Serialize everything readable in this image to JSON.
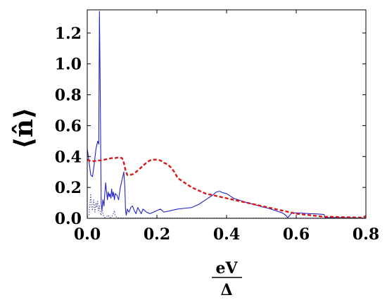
{
  "chart_data": {
    "type": "line",
    "title": "",
    "xlabel_num": "eV",
    "xlabel_den": "Δ",
    "ylabel": "⟨n̂⟩",
    "xlim": [
      0,
      0.8
    ],
    "ylim": [
      0,
      1.35
    ],
    "xticks": [
      "0.0",
      "0.2",
      "0.4",
      "0.6",
      "0.8"
    ],
    "yticks": [
      "0.0",
      "0.2",
      "0.4",
      "0.6",
      "0.8",
      "1.0",
      "1.2"
    ],
    "xtick_values": [
      0,
      0.2,
      0.4,
      0.6,
      0.8
    ],
    "ytick_values": [
      0,
      0.2,
      0.4,
      0.6,
      0.8,
      1.0,
      1.2
    ],
    "grid": false,
    "series": [
      {
        "style": "solid",
        "color": "#2323c8",
        "x": [
          0,
          0.005,
          0.01,
          0.015,
          0.02,
          0.025,
          0.03,
          0.033,
          0.035,
          0.037,
          0.04,
          0.042,
          0.045,
          0.048,
          0.05,
          0.053,
          0.055,
          0.058,
          0.06,
          0.063,
          0.065,
          0.068,
          0.07,
          0.073,
          0.075,
          0.078,
          0.08,
          0.085,
          0.09,
          0.095,
          0.1,
          0.105,
          0.108,
          0.11,
          0.112,
          0.115,
          0.12,
          0.125,
          0.13,
          0.135,
          0.14,
          0.145,
          0.15,
          0.155,
          0.16,
          0.17,
          0.18,
          0.19,
          0.2,
          0.21,
          0.22,
          0.24,
          0.26,
          0.28,
          0.3,
          0.32,
          0.34,
          0.36,
          0.37,
          0.38,
          0.39,
          0.4,
          0.41,
          0.42,
          0.44,
          0.46,
          0.48,
          0.5,
          0.52,
          0.54,
          0.56,
          0.57,
          0.575,
          0.58,
          0.585,
          0.59,
          0.6,
          0.62,
          0.64,
          0.66,
          0.68,
          0.682,
          0.7,
          0.72,
          0.74,
          0.76,
          0.78,
          0.8
        ],
        "y": [
          0.45,
          0.37,
          0.28,
          0.27,
          0.35,
          0.45,
          0.5,
          0.48,
          1.34,
          0.9,
          0.1,
          0.05,
          0.12,
          0.08,
          0.15,
          0.23,
          0.18,
          0.12,
          0.17,
          0.14,
          0.16,
          0.13,
          0.19,
          0.14,
          0.17,
          0.12,
          0.16,
          0.15,
          0.12,
          0.2,
          0.25,
          0.3,
          0.2,
          0.05,
          0.02,
          0.06,
          0.04,
          0.07,
          0.08,
          0.05,
          0.03,
          0.07,
          0.05,
          0.03,
          0.06,
          0.04,
          0.03,
          0.04,
          0.05,
          0.06,
          0.04,
          0.05,
          0.06,
          0.065,
          0.07,
          0.09,
          0.12,
          0.15,
          0.17,
          0.175,
          0.165,
          0.16,
          0.145,
          0.13,
          0.115,
          0.1,
          0.09,
          0.075,
          0.065,
          0.05,
          0.035,
          0.02,
          0.005,
          0.015,
          0.03,
          0.035,
          0.035,
          0.033,
          0.03,
          0.028,
          0.025,
          0.005,
          0.005,
          0.005,
          0.004,
          0.003,
          0.002,
          0.002
        ]
      },
      {
        "style": "dashed",
        "color": "#d81818",
        "x": [
          0,
          0.01,
          0.02,
          0.03,
          0.04,
          0.05,
          0.06,
          0.07,
          0.08,
          0.09,
          0.1,
          0.105,
          0.11,
          0.115,
          0.12,
          0.13,
          0.14,
          0.15,
          0.16,
          0.17,
          0.18,
          0.19,
          0.2,
          0.21,
          0.22,
          0.23,
          0.24,
          0.25,
          0.26,
          0.28,
          0.3,
          0.32,
          0.34,
          0.36,
          0.38,
          0.4,
          0.42,
          0.44,
          0.46,
          0.48,
          0.5,
          0.52,
          0.54,
          0.56,
          0.58,
          0.6,
          0.62,
          0.64,
          0.66,
          0.68,
          0.7,
          0.72,
          0.74,
          0.76,
          0.78,
          0.79,
          0.8
        ],
        "y": [
          0.38,
          0.37,
          0.37,
          0.375,
          0.375,
          0.38,
          0.385,
          0.39,
          0.39,
          0.395,
          0.39,
          0.36,
          0.31,
          0.28,
          0.28,
          0.285,
          0.3,
          0.32,
          0.34,
          0.36,
          0.375,
          0.38,
          0.38,
          0.375,
          0.36,
          0.35,
          0.33,
          0.3,
          0.26,
          0.23,
          0.2,
          0.18,
          0.16,
          0.15,
          0.14,
          0.13,
          0.12,
          0.11,
          0.1,
          0.09,
          0.08,
          0.07,
          0.06,
          0.05,
          0.04,
          0.03,
          0.025,
          0.02,
          0.015,
          0.01,
          0.01,
          0.008,
          0.007,
          0.006,
          0.005,
          0.005,
          0.015
        ]
      },
      {
        "style": "dotted",
        "color": "#5858a8",
        "x": [
          0,
          0.005,
          0.008,
          0.01,
          0.012,
          0.015,
          0.018,
          0.02,
          0.022,
          0.025,
          0.027,
          0.03,
          0.032,
          0.035,
          0.038,
          0.04,
          0.042,
          0.045,
          0.048,
          0.05,
          0.055,
          0.06,
          0.065,
          0.07,
          0.075,
          0.078,
          0.08,
          0.085,
          0.09,
          0.1,
          0.12,
          0.15,
          0.2,
          0.3,
          0.4,
          0.5,
          0.6,
          0.7,
          0.8
        ],
        "y": [
          0.01,
          0.02,
          0.1,
          0.16,
          0.08,
          0.05,
          0.12,
          0.09,
          0.04,
          0.1,
          0.07,
          0.11,
          0.05,
          0.08,
          0.03,
          0.02,
          0.06,
          0.03,
          0.01,
          0.005,
          0.01,
          0.02,
          0.005,
          0.01,
          0.03,
          0.05,
          0.02,
          0.005,
          0.003,
          0.002,
          0.002,
          0.002,
          0.002,
          0.001,
          0.001,
          0.001,
          0.001,
          0.001,
          0.001
        ]
      }
    ]
  }
}
